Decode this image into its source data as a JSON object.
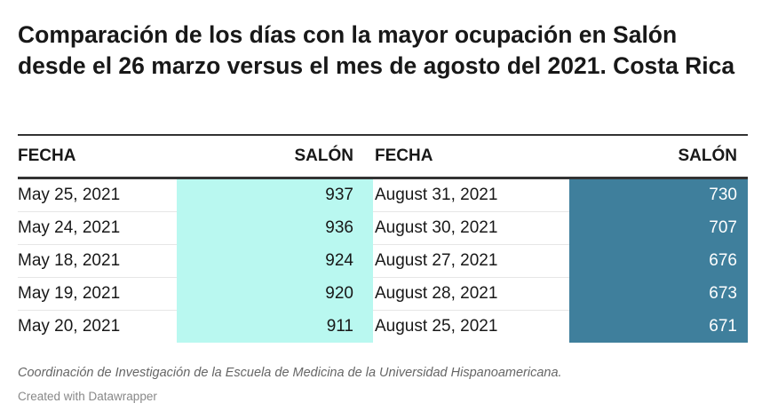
{
  "chart_data": {
    "type": "table",
    "title": "Comparación de los días con la mayor ocupación en Salón desde el 26 marzo versus el mes de agosto del 2021. Costa Rica",
    "columns": [
      "FECHA",
      "SALÓN",
      "FECHA",
      "SALÓN"
    ],
    "rows": [
      [
        "May 25, 2021",
        937,
        "August 31, 2021",
        730
      ],
      [
        "May 24, 2021",
        936,
        "August 30, 2021",
        707
      ],
      [
        "May 18, 2021",
        924,
        "August 27, 2021",
        676
      ],
      [
        "May 19, 2021",
        920,
        "August 28, 2021",
        673
      ],
      [
        "May 20, 2021",
        911,
        "August 25, 2021",
        671
      ]
    ],
    "column_colors": {
      "salon_1": "#b9f8f0",
      "salon_2": "#3f7f9c"
    }
  },
  "footer": {
    "source": "Coordinación de Investigación de la Escuela de Medicina de la Universidad Hispanoamericana.",
    "credit": "Created with Datawrapper"
  }
}
